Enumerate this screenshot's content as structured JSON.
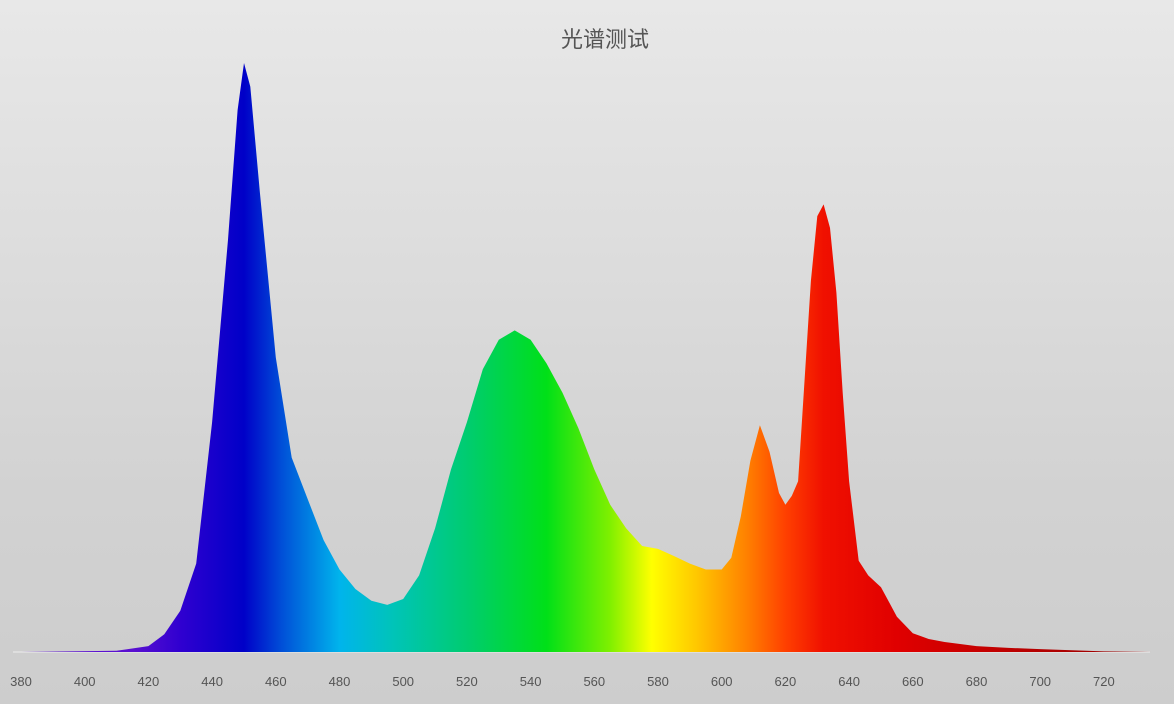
{
  "chart_data": {
    "type": "area",
    "title": "光谱测试",
    "xlabel": "",
    "ylabel": "",
    "xlim": [
      380,
      735
    ],
    "ylim": [
      0,
      1
    ],
    "grid": false,
    "legend": "none",
    "x_ticks": [
      380,
      400,
      420,
      440,
      460,
      480,
      500,
      520,
      540,
      560,
      580,
      600,
      620,
      640,
      660,
      680,
      700,
      720
    ],
    "x": [
      380,
      410,
      420,
      425,
      430,
      435,
      440,
      445,
      448,
      450,
      452,
      455,
      460,
      465,
      470,
      475,
      480,
      485,
      490,
      495,
      500,
      505,
      510,
      515,
      520,
      525,
      530,
      535,
      540,
      545,
      550,
      555,
      560,
      565,
      570,
      575,
      580,
      585,
      590,
      595,
      600,
      603,
      606,
      609,
      612,
      615,
      618,
      620,
      622,
      624,
      626,
      628,
      630,
      632,
      634,
      636,
      638,
      640,
      643,
      646,
      650,
      655,
      660,
      665,
      670,
      680,
      690,
      700,
      710,
      720,
      735
    ],
    "values": [
      0,
      0.002,
      0.01,
      0.03,
      0.07,
      0.15,
      0.39,
      0.7,
      0.92,
      1.0,
      0.96,
      0.78,
      0.5,
      0.33,
      0.26,
      0.19,
      0.14,
      0.107,
      0.087,
      0.08,
      0.09,
      0.13,
      0.21,
      0.31,
      0.39,
      0.48,
      0.53,
      0.546,
      0.53,
      0.49,
      0.44,
      0.38,
      0.31,
      0.25,
      0.21,
      0.18,
      0.175,
      0.163,
      0.15,
      0.14,
      0.14,
      0.16,
      0.23,
      0.325,
      0.385,
      0.34,
      0.27,
      0.25,
      0.265,
      0.29,
      0.46,
      0.63,
      0.74,
      0.76,
      0.72,
      0.61,
      0.44,
      0.29,
      0.155,
      0.13,
      0.11,
      0.06,
      0.032,
      0.022,
      0.017,
      0.01,
      0.007,
      0.005,
      0.003,
      0.001,
      0
    ],
    "fill_gradient": [
      {
        "nm": 415,
        "color": "#5a10d0"
      },
      {
        "nm": 430,
        "color": "#3000d0"
      },
      {
        "nm": 450,
        "color": "#0000c8"
      },
      {
        "nm": 462,
        "color": "#0050d8"
      },
      {
        "nm": 480,
        "color": "#00b4ec"
      },
      {
        "nm": 497,
        "color": "#00c4b8"
      },
      {
        "nm": 520,
        "color": "#00cc70"
      },
      {
        "nm": 545,
        "color": "#00e018"
      },
      {
        "nm": 565,
        "color": "#80f000"
      },
      {
        "nm": 578,
        "color": "#ffff00"
      },
      {
        "nm": 592,
        "color": "#ffc800"
      },
      {
        "nm": 608,
        "color": "#ff8000"
      },
      {
        "nm": 620,
        "color": "#ff4000"
      },
      {
        "nm": 632,
        "color": "#f01000"
      },
      {
        "nm": 655,
        "color": "#e00000"
      },
      {
        "nm": 720,
        "color": "#a00000"
      }
    ]
  }
}
